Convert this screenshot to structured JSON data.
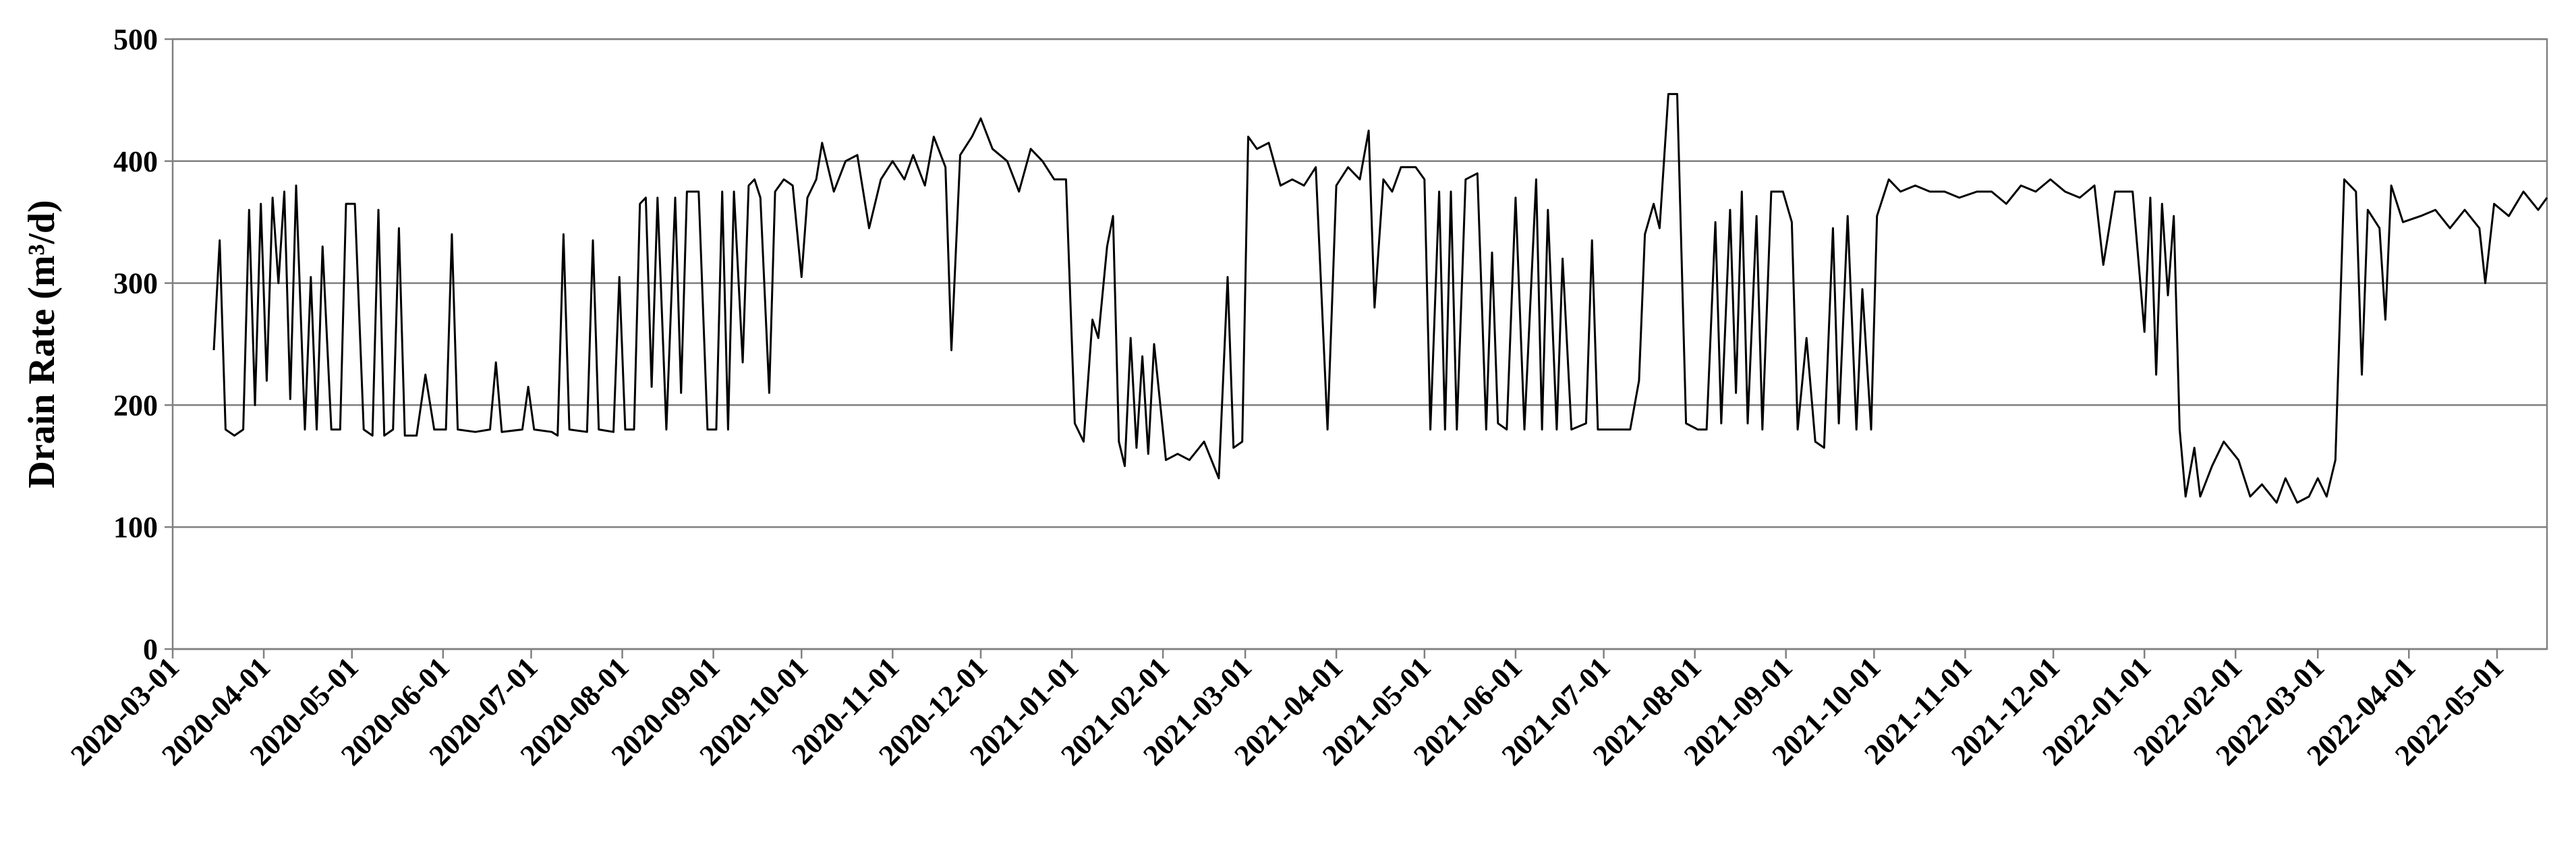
{
  "chart_data": {
    "type": "line",
    "ylabel": "Drain Rate (m³/d)",
    "color": "#000000",
    "grid": true,
    "x": [
      "2020-03-15",
      "2020-03-17",
      "2020-03-19",
      "2020-03-22",
      "2020-03-25",
      "2020-03-27",
      "2020-03-29",
      "2020-03-31",
      "2020-04-02",
      "2020-04-04",
      "2020-04-06",
      "2020-04-08",
      "2020-04-10",
      "2020-04-12",
      "2020-04-15",
      "2020-04-17",
      "2020-04-19",
      "2020-04-21",
      "2020-04-24",
      "2020-04-27",
      "2020-04-29",
      "2020-05-02",
      "2020-05-05",
      "2020-05-08",
      "2020-05-10",
      "2020-05-12",
      "2020-05-15",
      "2020-05-17",
      "2020-05-19",
      "2020-05-23",
      "2020-05-26",
      "2020-05-29",
      "2020-06-02",
      "2020-06-04",
      "2020-06-06",
      "2020-06-12",
      "2020-06-17",
      "2020-06-19",
      "2020-06-21",
      "2020-06-28",
      "2020-06-30",
      "2020-07-02",
      "2020-07-08",
      "2020-07-10",
      "2020-07-12",
      "2020-07-14",
      "2020-07-20",
      "2020-07-22",
      "2020-07-24",
      "2020-07-29",
      "2020-07-31",
      "2020-08-02",
      "2020-08-05",
      "2020-08-07",
      "2020-08-09",
      "2020-08-11",
      "2020-08-13",
      "2020-08-16",
      "2020-08-19",
      "2020-08-21",
      "2020-08-23",
      "2020-08-27",
      "2020-08-30",
      "2020-09-02",
      "2020-09-04",
      "2020-09-06",
      "2020-09-08",
      "2020-09-11",
      "2020-09-13",
      "2020-09-15",
      "2020-09-17",
      "2020-09-20",
      "2020-09-22",
      "2020-09-25",
      "2020-09-28",
      "2020-10-01",
      "2020-10-03",
      "2020-10-06",
      "2020-10-08",
      "2020-10-12",
      "2020-10-16",
      "2020-10-20",
      "2020-10-24",
      "2020-10-28",
      "2020-11-01",
      "2020-11-05",
      "2020-11-08",
      "2020-11-12",
      "2020-11-15",
      "2020-11-19",
      "2020-11-21",
      "2020-11-24",
      "2020-11-28",
      "2020-12-01",
      "2020-12-05",
      "2020-12-10",
      "2020-12-14",
      "2020-12-18",
      "2020-12-22",
      "2020-12-26",
      "2020-12-30",
      "2021-01-02",
      "2021-01-05",
      "2021-01-08",
      "2021-01-10",
      "2021-01-13",
      "2021-01-15",
      "2021-01-17",
      "2021-01-19",
      "2021-01-21",
      "2021-01-23",
      "2021-01-25",
      "2021-01-27",
      "2021-01-29",
      "2021-02-02",
      "2021-02-06",
      "2021-02-10",
      "2021-02-15",
      "2021-02-20",
      "2021-02-23",
      "2021-02-25",
      "2021-02-28",
      "2021-03-02",
      "2021-03-05",
      "2021-03-09",
      "2021-03-13",
      "2021-03-17",
      "2021-03-21",
      "2021-03-25",
      "2021-03-29",
      "2021-04-01",
      "2021-04-05",
      "2021-04-09",
      "2021-04-12",
      "2021-04-14",
      "2021-04-17",
      "2021-04-20",
      "2021-04-23",
      "2021-04-28",
      "2021-05-01",
      "2021-05-03",
      "2021-05-06",
      "2021-05-08",
      "2021-05-10",
      "2021-05-12",
      "2021-05-15",
      "2021-05-19",
      "2021-05-22",
      "2021-05-24",
      "2021-05-26",
      "2021-05-29",
      "2021-06-01",
      "2021-06-04",
      "2021-06-08",
      "2021-06-10",
      "2021-06-12",
      "2021-06-15",
      "2021-06-17",
      "2021-06-20",
      "2021-06-25",
      "2021-06-27",
      "2021-06-29",
      "2021-07-05",
      "2021-07-10",
      "2021-07-13",
      "2021-07-15",
      "2021-07-18",
      "2021-07-20",
      "2021-07-23",
      "2021-07-26",
      "2021-07-29",
      "2021-08-02",
      "2021-08-05",
      "2021-08-08",
      "2021-08-10",
      "2021-08-13",
      "2021-08-15",
      "2021-08-17",
      "2021-08-19",
      "2021-08-22",
      "2021-08-24",
      "2021-08-27",
      "2021-08-31",
      "2021-09-03",
      "2021-09-05",
      "2021-09-08",
      "2021-09-11",
      "2021-09-14",
      "2021-09-17",
      "2021-09-19",
      "2021-09-22",
      "2021-09-25",
      "2021-09-27",
      "2021-09-30",
      "2021-10-02",
      "2021-10-06",
      "2021-10-10",
      "2021-10-15",
      "2021-10-20",
      "2021-10-25",
      "2021-10-30",
      "2021-11-05",
      "2021-11-10",
      "2021-11-15",
      "2021-11-20",
      "2021-11-25",
      "2021-11-30",
      "2021-12-05",
      "2021-12-10",
      "2021-12-15",
      "2021-12-18",
      "2021-12-22",
      "2021-12-28",
      "2022-01-01",
      "2022-01-03",
      "2022-01-05",
      "2022-01-07",
      "2022-01-09",
      "2022-01-11",
      "2022-01-13",
      "2022-01-15",
      "2022-01-18",
      "2022-01-20",
      "2022-01-24",
      "2022-01-28",
      "2022-02-02",
      "2022-02-06",
      "2022-02-10",
      "2022-02-15",
      "2022-02-18",
      "2022-02-22",
      "2022-02-26",
      "2022-03-01",
      "2022-03-04",
      "2022-03-07",
      "2022-03-10",
      "2022-03-14",
      "2022-03-16",
      "2022-03-18",
      "2022-03-22",
      "2022-03-24",
      "2022-03-26",
      "2022-03-30",
      "2022-04-05",
      "2022-04-10",
      "2022-04-15",
      "2022-04-20",
      "2022-04-25",
      "2022-04-27",
      "2022-04-30",
      "2022-05-05",
      "2022-05-10",
      "2022-05-15",
      "2022-05-18"
    ],
    "values": [
      245,
      335,
      180,
      175,
      180,
      360,
      200,
      365,
      220,
      370,
      300,
      375,
      205,
      380,
      180,
      305,
      180,
      330,
      180,
      180,
      365,
      365,
      180,
      175,
      360,
      175,
      180,
      345,
      175,
      175,
      225,
      180,
      180,
      340,
      180,
      178,
      180,
      235,
      178,
      180,
      215,
      180,
      178,
      175,
      340,
      180,
      178,
      335,
      180,
      178,
      305,
      180,
      180,
      365,
      370,
      215,
      370,
      180,
      370,
      210,
      375,
      375,
      180,
      180,
      375,
      180,
      375,
      235,
      380,
      385,
      370,
      210,
      375,
      385,
      380,
      305,
      370,
      385,
      415,
      375,
      400,
      405,
      345,
      385,
      400,
      385,
      405,
      380,
      420,
      395,
      245,
      405,
      420,
      435,
      410,
      400,
      375,
      410,
      400,
      385,
      385,
      185,
      170,
      270,
      255,
      330,
      355,
      170,
      150,
      255,
      165,
      240,
      160,
      250,
      155,
      160,
      155,
      170,
      140,
      305,
      165,
      170,
      420,
      410,
      415,
      380,
      385,
      380,
      395,
      180,
      380,
      395,
      385,
      425,
      280,
      385,
      375,
      395,
      395,
      385,
      180,
      375,
      180,
      375,
      180,
      385,
      390,
      180,
      325,
      185,
      180,
      370,
      180,
      385,
      180,
      360,
      180,
      320,
      180,
      185,
      335,
      180,
      180,
      180,
      220,
      340,
      365,
      345,
      455,
      455,
      185,
      180,
      180,
      350,
      185,
      360,
      210,
      375,
      185,
      355,
      180,
      375,
      375,
      350,
      180,
      255,
      170,
      165,
      345,
      185,
      355,
      180,
      295,
      180,
      355,
      385,
      375,
      380,
      375,
      375,
      370,
      375,
      375,
      365,
      380,
      375,
      385,
      375,
      370,
      380,
      315,
      375,
      375,
      260,
      370,
      225,
      365,
      290,
      355,
      180,
      125,
      165,
      125,
      150,
      170,
      155,
      125,
      135,
      120,
      140,
      120,
      125,
      140,
      125,
      155,
      385,
      375,
      225,
      360,
      345,
      270,
      380,
      350,
      355,
      360,
      345,
      360,
      345,
      300,
      365,
      355,
      375,
      360,
      370
    ],
    "xlim": [
      "2020-03-01",
      "2022-05-18"
    ],
    "xticks": [
      "2020-03-01",
      "2020-04-01",
      "2020-05-01",
      "2020-06-01",
      "2020-07-01",
      "2020-08-01",
      "2020-09-01",
      "2020-10-01",
      "2020-11-01",
      "2020-12-01",
      "2021-01-01",
      "2021-02-01",
      "2021-03-01",
      "2021-04-01",
      "2021-05-01",
      "2021-06-01",
      "2021-07-01",
      "2021-08-01",
      "2021-09-01",
      "2021-10-01",
      "2021-11-01",
      "2021-12-01",
      "2022-01-01",
      "2022-02-01",
      "2022-03-01",
      "2022-04-01",
      "2022-05-01"
    ],
    "ylim": [
      0,
      500
    ],
    "yticks": [
      0,
      100,
      200,
      300,
      400,
      500
    ]
  }
}
